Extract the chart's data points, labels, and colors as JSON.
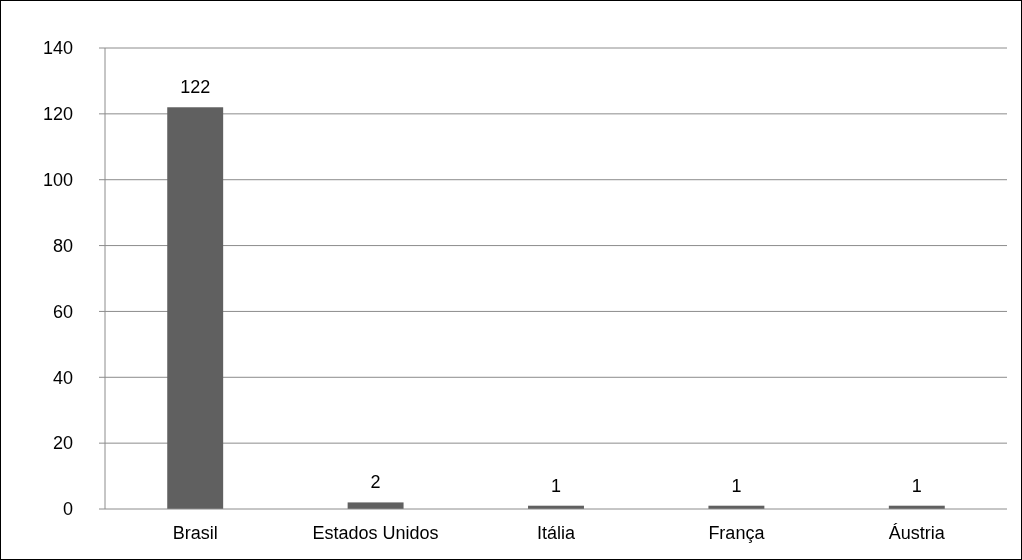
{
  "chart_data": {
    "type": "bar",
    "categories": [
      "Brasil",
      "Estados Unidos",
      "Itália",
      "França",
      "Áustria"
    ],
    "values": [
      122,
      2,
      1,
      1,
      1
    ],
    "color": "#606060",
    "ylim": [
      0,
      140
    ],
    "yticks": [
      0,
      20,
      40,
      60,
      80,
      100,
      120,
      140
    ],
    "grid": "y",
    "data_labels": true
  }
}
